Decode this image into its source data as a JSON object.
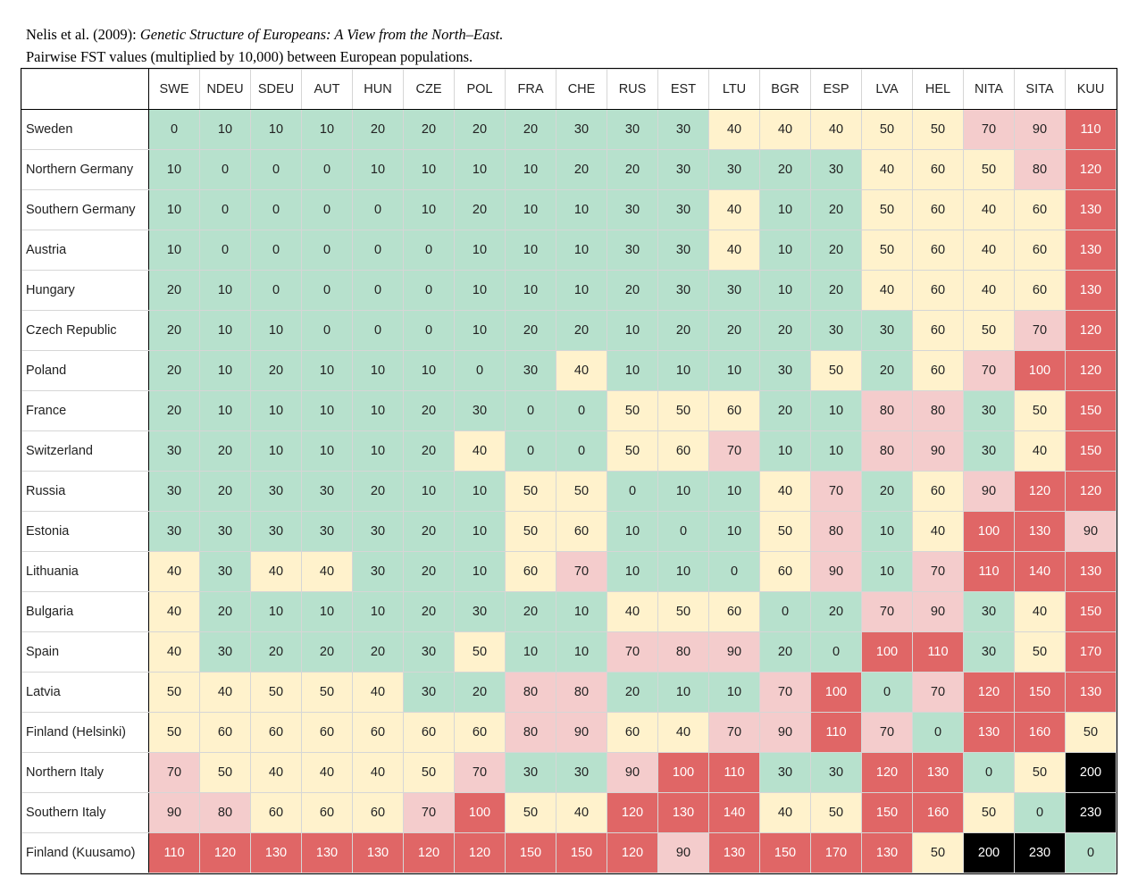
{
  "caption": {
    "line1_prefix": "Nelis  et al. (2009): ",
    "line1_title": "Genetic Structure of Europeans: A View from the North–East.",
    "line2": "Pairwise FST values (multiplied by 10,000) between European populations."
  },
  "colors": {
    "low": "#b7e1cd",
    "mid": "#fff2cc",
    "high": "#f4cccc",
    "very_high": "#e06666",
    "extreme": "#000000"
  },
  "chart_data": {
    "type": "heatmap",
    "columns": [
      "SWE",
      "NDEU",
      "SDEU",
      "AUT",
      "HUN",
      "CZE",
      "POL",
      "FRA",
      "CHE",
      "RUS",
      "EST",
      "LTU",
      "BGR",
      "ESP",
      "LVA",
      "HEL",
      "NITA",
      "SITA",
      "KUU"
    ],
    "rows": [
      "Sweden",
      "Northern Germany",
      "Southern Germany",
      "Austria",
      "Hungary",
      "Czech Republic",
      "Poland",
      "France",
      "Switzerland",
      "Russia",
      "Estonia",
      "Lithuania",
      "Bulgaria",
      "Spain",
      "Latvia",
      "Finland (Helsinki)",
      "Northern Italy",
      "Southern Italy",
      "Finland (Kuusamo)"
    ],
    "values": [
      [
        0,
        10,
        10,
        10,
        20,
        20,
        20,
        20,
        30,
        30,
        30,
        40,
        40,
        40,
        50,
        50,
        70,
        90,
        110
      ],
      [
        10,
        0,
        0,
        0,
        10,
        10,
        10,
        10,
        20,
        20,
        30,
        30,
        20,
        30,
        40,
        60,
        50,
        80,
        120
      ],
      [
        10,
        0,
        0,
        0,
        0,
        10,
        20,
        10,
        10,
        30,
        30,
        40,
        10,
        20,
        50,
        60,
        40,
        60,
        130
      ],
      [
        10,
        0,
        0,
        0,
        0,
        0,
        10,
        10,
        10,
        30,
        30,
        40,
        10,
        20,
        50,
        60,
        40,
        60,
        130
      ],
      [
        20,
        10,
        0,
        0,
        0,
        0,
        10,
        10,
        10,
        20,
        30,
        30,
        10,
        20,
        40,
        60,
        40,
        60,
        130
      ],
      [
        20,
        10,
        10,
        0,
        0,
        0,
        10,
        20,
        20,
        10,
        20,
        20,
        20,
        30,
        30,
        60,
        50,
        70,
        120
      ],
      [
        20,
        10,
        20,
        10,
        10,
        10,
        0,
        30,
        40,
        10,
        10,
        10,
        30,
        50,
        20,
        60,
        70,
        100,
        120
      ],
      [
        20,
        10,
        10,
        10,
        10,
        20,
        30,
        0,
        0,
        50,
        50,
        60,
        20,
        10,
        80,
        80,
        30,
        50,
        150
      ],
      [
        30,
        20,
        10,
        10,
        10,
        20,
        40,
        0,
        0,
        50,
        60,
        70,
        10,
        10,
        80,
        90,
        30,
        40,
        150
      ],
      [
        30,
        20,
        30,
        30,
        20,
        10,
        10,
        50,
        50,
        0,
        10,
        10,
        40,
        70,
        20,
        60,
        90,
        120,
        120
      ],
      [
        30,
        30,
        30,
        30,
        30,
        20,
        10,
        50,
        60,
        10,
        0,
        10,
        50,
        80,
        10,
        40,
        100,
        130,
        90
      ],
      [
        40,
        30,
        40,
        40,
        30,
        20,
        10,
        60,
        70,
        10,
        10,
        0,
        60,
        90,
        10,
        70,
        110,
        140,
        130
      ],
      [
        40,
        20,
        10,
        10,
        10,
        20,
        30,
        20,
        10,
        40,
        50,
        60,
        0,
        20,
        70,
        90,
        30,
        40,
        150
      ],
      [
        40,
        30,
        20,
        20,
        20,
        30,
        50,
        10,
        10,
        70,
        80,
        90,
        20,
        0,
        100,
        110,
        30,
        50,
        170
      ],
      [
        50,
        40,
        50,
        50,
        40,
        30,
        20,
        80,
        80,
        20,
        10,
        10,
        70,
        100,
        0,
        70,
        120,
        150,
        130
      ],
      [
        50,
        60,
        60,
        60,
        60,
        60,
        60,
        80,
        90,
        60,
        40,
        70,
        90,
        110,
        70,
        0,
        130,
        160,
        50
      ],
      [
        70,
        50,
        40,
        40,
        40,
        50,
        70,
        30,
        30,
        90,
        100,
        110,
        30,
        30,
        120,
        130,
        0,
        50,
        200
      ],
      [
        90,
        80,
        60,
        60,
        60,
        70,
        100,
        50,
        40,
        120,
        130,
        140,
        40,
        50,
        150,
        160,
        50,
        0,
        230
      ],
      [
        110,
        120,
        130,
        130,
        130,
        120,
        120,
        150,
        150,
        120,
        90,
        130,
        150,
        170,
        130,
        50,
        200,
        230,
        0
      ]
    ]
  }
}
